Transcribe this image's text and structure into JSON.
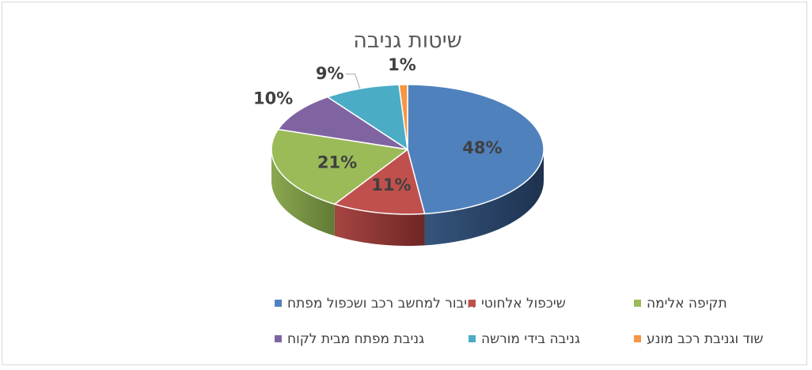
{
  "chart_data": {
    "type": "pie",
    "title": "שיטות גניבה",
    "categories": [
      "חיבור למחשב רכב ושכפול מפתח",
      "שיכפול אלחוטי",
      "תקיפה אלימה",
      "גניבת מפתח מבית לקוח",
      "גניבה בידי מורשה",
      "שוד וגניבת רכב מונע"
    ],
    "values": [
      48,
      11,
      21,
      10,
      9,
      1
    ],
    "data_labels": [
      "48%",
      "11%",
      "21%",
      "10%",
      "9%",
      "1%"
    ],
    "colors": [
      "#4f81bd",
      "#c0504d",
      "#9bbb59",
      "#8064a2",
      "#4bacc6",
      "#f79646"
    ],
    "legend_position": "bottom",
    "style": "3d"
  }
}
